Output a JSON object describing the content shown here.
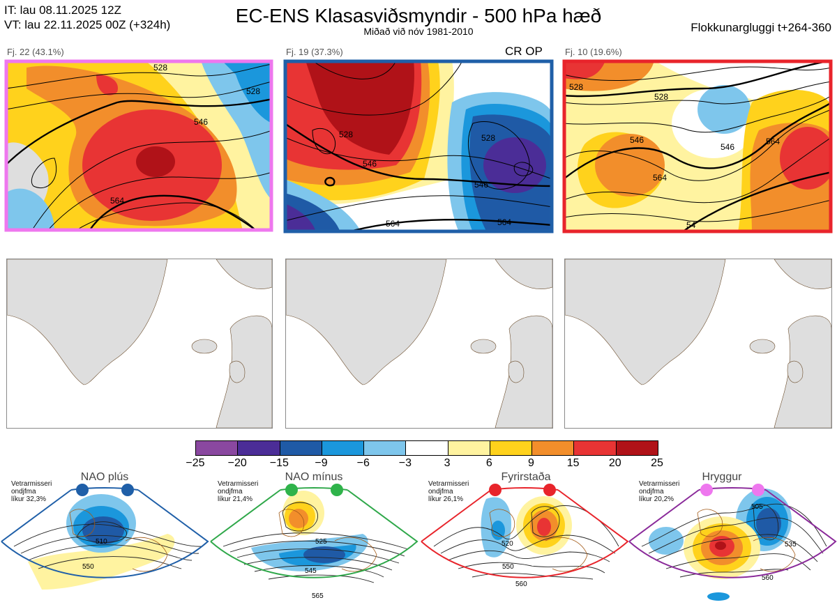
{
  "header": {
    "it_line": "IT: lau 08.11.2025 12Z",
    "vt_line": "VT: lau 22.11.2025 00Z  (+324h)",
    "title": "EC-ENS Klasasviðsmyndir - 500 hPa hæð",
    "subtitle": "Miðað við nóv 1981-2010",
    "window": "Flokkunargluggi t+264-360"
  },
  "clusters": [
    {
      "label": "Fj. 22 (43.1%)",
      "frame_color": "#ee77ee",
      "contours": [
        "528",
        "546",
        "564",
        "528"
      ]
    },
    {
      "label": "Fj. 19 (37.3%)",
      "op_label": "CR OP",
      "frame_color": "#1f5fa8",
      "contours": [
        "528",
        "546",
        "564",
        "546",
        "564",
        "528"
      ]
    },
    {
      "label": "Fj. 10 (19.6%)",
      "frame_color": "#e8242b",
      "contours": [
        "528",
        "528",
        "546",
        "564",
        "546",
        "564",
        "54"
      ]
    }
  ],
  "colorbar": {
    "colors": [
      "#8a48a0",
      "#4b2d97",
      "#1f5aa6",
      "#1b97dc",
      "#7ec6ec",
      "#ffffff",
      "#fff3a0",
      "#ffd21c",
      "#f28e2b",
      "#e83434",
      "#b01218"
    ],
    "ticks": [
      "−25",
      "−20",
      "−15",
      "−9",
      "−6",
      "−3",
      "3",
      "6",
      "9",
      "15",
      "20",
      "25"
    ]
  },
  "regimes": [
    {
      "name": "NAO plús",
      "note1": "Vetrarmisseri",
      "note2": "ondjfma",
      "note3": "líkur 32,3%",
      "color": "#1f5fa8",
      "dot": "#1f5fa8",
      "labels": [
        "510",
        "550"
      ]
    },
    {
      "name": "NAO mínus",
      "note1": "Vetrarmisseri",
      "note2": "ondjfma",
      "note3": "líkur 21,4%",
      "color": "#2fa84a",
      "dot": "#2fb34a",
      "labels": [
        "525",
        "545",
        "565"
      ]
    },
    {
      "name": "Fyrirstaða",
      "note1": "Vetrarmisseri",
      "note2": "ondjfma",
      "note3": "líkur 26,1%",
      "color": "#e8242b",
      "dot": "#e8242b",
      "labels": [
        "520",
        "550",
        "560"
      ]
    },
    {
      "name": "Hryggur",
      "note1": "Vetrarmisseri",
      "note2": "ondjfma",
      "note3": "líkur 20,2%",
      "color": "#8a2a9a",
      "dot": "#ee77ee",
      "labels": [
        "505",
        "535",
        "560"
      ]
    }
  ]
}
